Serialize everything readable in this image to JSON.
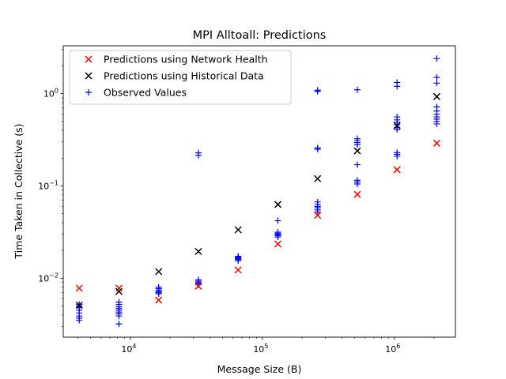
{
  "chart_data": {
    "type": "scatter",
    "title": "MPI Alltoall: Predictions",
    "xlabel": "Message Size (B)",
    "ylabel": "Time Taken in Collective (s)",
    "xscale": "log",
    "yscale": "log",
    "xlim": [
      3100,
      2900000
    ],
    "ylim": [
      0.0023,
      3.3
    ],
    "x_ticks": [
      {
        "value": 10000,
        "base": "10",
        "exp": "4"
      },
      {
        "value": 100000,
        "base": "10",
        "exp": "5"
      },
      {
        "value": 1000000,
        "base": "10",
        "exp": "6"
      }
    ],
    "y_ticks": [
      {
        "value": 0.01,
        "base": "10",
        "exp": "−2"
      },
      {
        "value": 0.1,
        "base": "10",
        "exp": "−1"
      },
      {
        "value": 1,
        "base": "10",
        "exp": "0"
      }
    ],
    "legend_position": "top-left",
    "grid": false,
    "series": [
      {
        "name": "Predictions using Network Health",
        "marker": "x",
        "color": "#ff0000",
        "points": [
          [
            4096,
            0.0078
          ],
          [
            8192,
            0.0078
          ],
          [
            16384,
            0.0058
          ],
          [
            32768,
            0.0082
          ],
          [
            65536,
            0.0123
          ],
          [
            131072,
            0.0235
          ],
          [
            262144,
            0.048
          ],
          [
            524288,
            0.081
          ],
          [
            1048576,
            0.15
          ],
          [
            2097152,
            0.29
          ]
        ]
      },
      {
        "name": "Predictions using Historical Data",
        "marker": "x",
        "color": "#000000",
        "points": [
          [
            4096,
            0.0051
          ],
          [
            8192,
            0.0072
          ],
          [
            16384,
            0.0118
          ],
          [
            32768,
            0.0195
          ],
          [
            65536,
            0.0335
          ],
          [
            131072,
            0.063
          ],
          [
            262144,
            0.12
          ],
          [
            524288,
            0.24
          ],
          [
            1048576,
            0.45
          ],
          [
            2097152,
            0.93
          ]
        ]
      },
      {
        "name": "Observed Values",
        "marker": "+",
        "color": "#0000ff",
        "points": [
          [
            4096,
            0.0035
          ],
          [
            4096,
            0.0037
          ],
          [
            4096,
            0.0039
          ],
          [
            4096,
            0.0042
          ],
          [
            4096,
            0.0045
          ],
          [
            4096,
            0.0048
          ],
          [
            4096,
            0.005
          ],
          [
            4096,
            0.0052
          ],
          [
            8192,
            0.0032
          ],
          [
            8192,
            0.0039
          ],
          [
            8192,
            0.0041
          ],
          [
            8192,
            0.0043
          ],
          [
            8192,
            0.0045
          ],
          [
            8192,
            0.0047
          ],
          [
            8192,
            0.0049
          ],
          [
            8192,
            0.0052
          ],
          [
            8192,
            0.0055
          ],
          [
            16384,
            0.0068
          ],
          [
            16384,
            0.007
          ],
          [
            16384,
            0.0072
          ],
          [
            16384,
            0.0074
          ],
          [
            16384,
            0.0077
          ],
          [
            16384,
            0.008
          ],
          [
            32768,
            0.0085
          ],
          [
            32768,
            0.0088
          ],
          [
            32768,
            0.009
          ],
          [
            32768,
            0.0093
          ],
          [
            32768,
            0.0096
          ],
          [
            32768,
            0.215
          ],
          [
            32768,
            0.228
          ],
          [
            65536,
            0.0155
          ],
          [
            65536,
            0.016
          ],
          [
            65536,
            0.0163
          ],
          [
            65536,
            0.0166
          ],
          [
            65536,
            0.017
          ],
          [
            65536,
            0.0173
          ],
          [
            131072,
            0.028
          ],
          [
            131072,
            0.029
          ],
          [
            131072,
            0.0297
          ],
          [
            131072,
            0.0305
          ],
          [
            131072,
            0.0315
          ],
          [
            131072,
            0.042
          ],
          [
            262144,
            0.052
          ],
          [
            262144,
            0.055
          ],
          [
            262144,
            0.058
          ],
          [
            262144,
            0.06
          ],
          [
            262144,
            0.063
          ],
          [
            262144,
            0.067
          ],
          [
            262144,
            0.25
          ],
          [
            262144,
            0.258
          ],
          [
            262144,
            1.06
          ],
          [
            262144,
            1.09
          ],
          [
            524288,
            0.105
          ],
          [
            524288,
            0.11
          ],
          [
            524288,
            0.115
          ],
          [
            524288,
            0.17
          ],
          [
            524288,
            0.28
          ],
          [
            524288,
            0.295
          ],
          [
            524288,
            0.31
          ],
          [
            524288,
            0.325
          ],
          [
            524288,
            1.1
          ],
          [
            1048576,
            0.21
          ],
          [
            1048576,
            0.22
          ],
          [
            1048576,
            0.23
          ],
          [
            1048576,
            0.41
          ],
          [
            1048576,
            0.43
          ],
          [
            1048576,
            0.46
          ],
          [
            1048576,
            0.49
          ],
          [
            1048576,
            0.52
          ],
          [
            1048576,
            0.56
          ],
          [
            1048576,
            1.2
          ],
          [
            1048576,
            1.32
          ],
          [
            2097152,
            0.47
          ],
          [
            2097152,
            0.5
          ],
          [
            2097152,
            0.53
          ],
          [
            2097152,
            0.56
          ],
          [
            2097152,
            0.6
          ],
          [
            2097152,
            0.65
          ],
          [
            2097152,
            0.72
          ],
          [
            2097152,
            1.3
          ],
          [
            2097152,
            1.5
          ],
          [
            2097152,
            2.4
          ]
        ]
      }
    ]
  }
}
